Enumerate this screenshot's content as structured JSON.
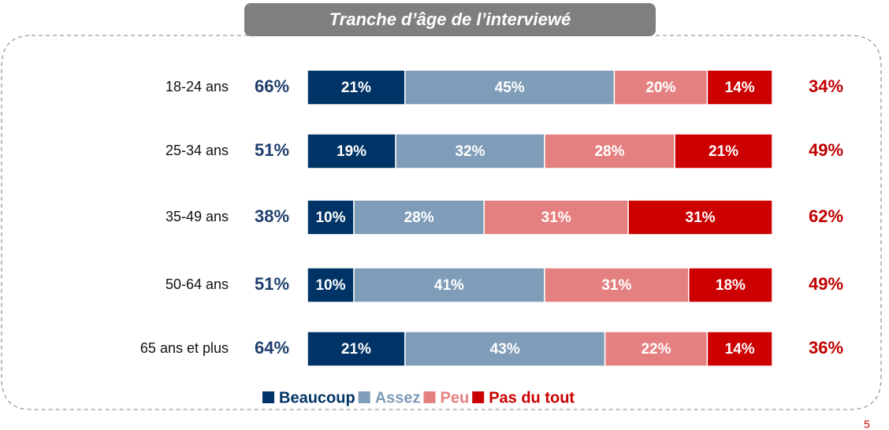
{
  "chart_data": {
    "type": "stacked-bar",
    "orientation": "horizontal",
    "title": "Tranche d’âge de l’interviewé",
    "categories": [
      "18-24 ans",
      "25-34 ans",
      "35-49 ans",
      "50-64 ans",
      "65 ans et plus"
    ],
    "xlim": [
      0,
      100
    ],
    "series": [
      {
        "name": "Beaucoup",
        "color": "#003466",
        "values": [
          21,
          19,
          10,
          10,
          21
        ],
        "value_labels": [
          "21%",
          "19%",
          "10%",
          "10%",
          "21%"
        ]
      },
      {
        "name": "Assez",
        "color": "#7f9cb8",
        "values": [
          45,
          32,
          28,
          41,
          43
        ],
        "value_labels": [
          "45%",
          "32%",
          "28%",
          "41%",
          "43%"
        ]
      },
      {
        "name": "Peu",
        "color": "#e58080",
        "values": [
          20,
          28,
          31,
          31,
          22
        ],
        "value_labels": [
          "20%",
          "28%",
          "31%",
          "31%",
          "22%"
        ]
      },
      {
        "name": "Pas du tout",
        "color": "#cc0000",
        "values": [
          14,
          21,
          31,
          18,
          14
        ],
        "value_labels": [
          "14%",
          "21%",
          "31%",
          "18%",
          "14%"
        ]
      }
    ],
    "left_totals": {
      "color": "#1f3f6e",
      "values": [
        66,
        51,
        38,
        51,
        64
      ],
      "value_labels": [
        "66%",
        "51%",
        "38%",
        "51%",
        "64%"
      ]
    },
    "right_totals": {
      "color": "#c00000",
      "values": [
        34,
        49,
        62,
        49,
        36
      ],
      "value_labels": [
        "34%",
        "49%",
        "62%",
        "49%",
        "36%"
      ]
    },
    "page_number": "5"
  }
}
